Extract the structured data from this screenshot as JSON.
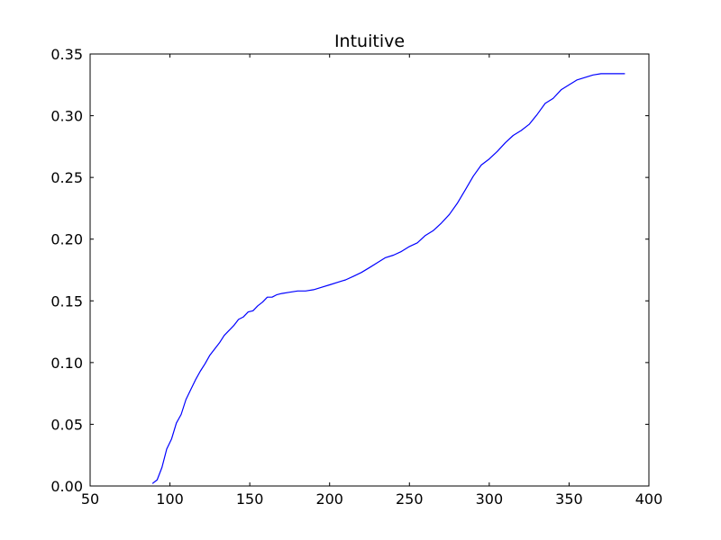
{
  "chart_data": {
    "type": "line",
    "title": "Intuitive",
    "xlabel": "",
    "ylabel": "",
    "xlim": [
      50,
      400
    ],
    "ylim": [
      0.0,
      0.35
    ],
    "x_ticks": [
      50,
      100,
      150,
      200,
      250,
      300,
      350,
      400
    ],
    "x_tick_labels": [
      "50",
      "100",
      "150",
      "200",
      "250",
      "300",
      "350",
      "400"
    ],
    "y_ticks": [
      0.0,
      0.05,
      0.1,
      0.15,
      0.2,
      0.25,
      0.3,
      0.35
    ],
    "y_tick_labels": [
      "0.00",
      "0.05",
      "0.10",
      "0.15",
      "0.20",
      "0.25",
      "0.30",
      "0.35"
    ],
    "grid": false,
    "legend": "none",
    "series": [
      {
        "color": "#0000ff",
        "x": [
          89,
          92,
          95,
          98,
          101,
          104,
          107,
          110,
          113,
          116,
          119,
          122,
          125,
          128,
          131,
          134,
          137,
          140,
          143,
          146,
          149,
          152,
          155,
          158,
          161,
          164,
          167,
          170,
          175,
          180,
          185,
          190,
          195,
          200,
          205,
          210,
          215,
          220,
          225,
          230,
          235,
          240,
          245,
          250,
          255,
          260,
          265,
          270,
          275,
          280,
          285,
          290,
          295,
          300,
          305,
          310,
          315,
          320,
          325,
          330,
          335,
          340,
          345,
          350,
          355,
          360,
          365,
          370,
          375,
          380,
          385
        ],
        "y": [
          0.002,
          0.005,
          0.015,
          0.03,
          0.038,
          0.051,
          0.058,
          0.07,
          0.078,
          0.086,
          0.093,
          0.099,
          0.106,
          0.111,
          0.116,
          0.122,
          0.126,
          0.13,
          0.135,
          0.137,
          0.141,
          0.142,
          0.146,
          0.149,
          0.153,
          0.153,
          0.155,
          0.156,
          0.157,
          0.158,
          0.158,
          0.159,
          0.161,
          0.163,
          0.165,
          0.167,
          0.17,
          0.173,
          0.177,
          0.181,
          0.185,
          0.187,
          0.19,
          0.194,
          0.197,
          0.203,
          0.207,
          0.213,
          0.22,
          0.229,
          0.24,
          0.251,
          0.26,
          0.265,
          0.271,
          0.278,
          0.284,
          0.288,
          0.293,
          0.301,
          0.31,
          0.314,
          0.321,
          0.325,
          0.329,
          0.331,
          0.333,
          0.334,
          0.334,
          0.334,
          0.334
        ]
      }
    ]
  }
}
